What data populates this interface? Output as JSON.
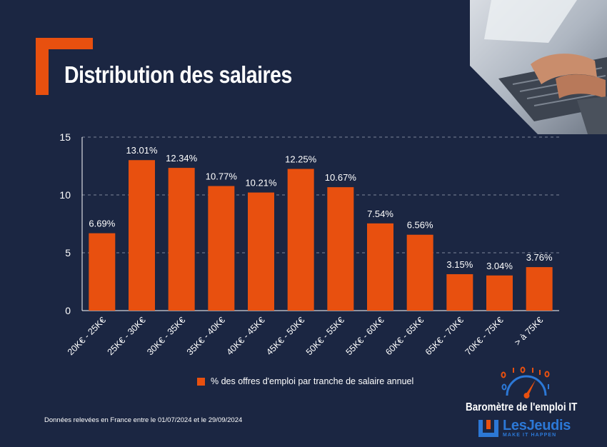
{
  "title": "Distribution des salaires",
  "colors": {
    "background": "#1b2642",
    "accent": "#e8500f",
    "text": "#ffffff",
    "brand_blue": "#2c78d6"
  },
  "legend": {
    "label": "% des offres d'emploi par tranche de salaire annuel"
  },
  "footer": {
    "source": "Données relevées en France entre le 01/07/2024 et le 29/09/2024",
    "barometer": "Baromètre de l'emploi IT",
    "brand_name": "LesJeudis",
    "brand_tagline": "MAKE IT HAPPEN"
  },
  "icons": {
    "bracket": "orange-corner-bracket-icon",
    "photo": "keyboard-typing-photo",
    "brand": "gauge-binary-icon",
    "logo": "lesjeudis-logo-icon"
  },
  "chart_data": {
    "type": "bar",
    "title": "Distribution des salaires",
    "xlabel": "",
    "ylabel": "",
    "ylim": [
      0,
      15
    ],
    "yticks": [
      0,
      5,
      10,
      15
    ],
    "grid": true,
    "legend_position": "bottom",
    "categories": [
      "20K€ - 25K€",
      "25K€ - 30K€",
      "30K€ - 35K€",
      "35K€ - 40K€",
      "40K€ - 45K€",
      "45K€ - 50K€",
      "50K€ - 55K€",
      "55K€ - 60K€",
      "60K€ - 65K€",
      "65K€ - 70K€",
      "70K€ - 75K€",
      "> à 75K€"
    ],
    "series": [
      {
        "name": "% des offres d'emploi par tranche de salaire annuel",
        "values": [
          6.69,
          13.01,
          12.34,
          10.77,
          10.21,
          12.25,
          10.67,
          7.54,
          6.56,
          3.15,
          3.04,
          3.76
        ],
        "labels": [
          "6.69%",
          "13.01%",
          "12.34%",
          "10.77%",
          "10.21%",
          "12.25%",
          "10.67%",
          "7.54%",
          "6.56%",
          "3.15%",
          "3.04%",
          "3.76%"
        ]
      }
    ]
  }
}
